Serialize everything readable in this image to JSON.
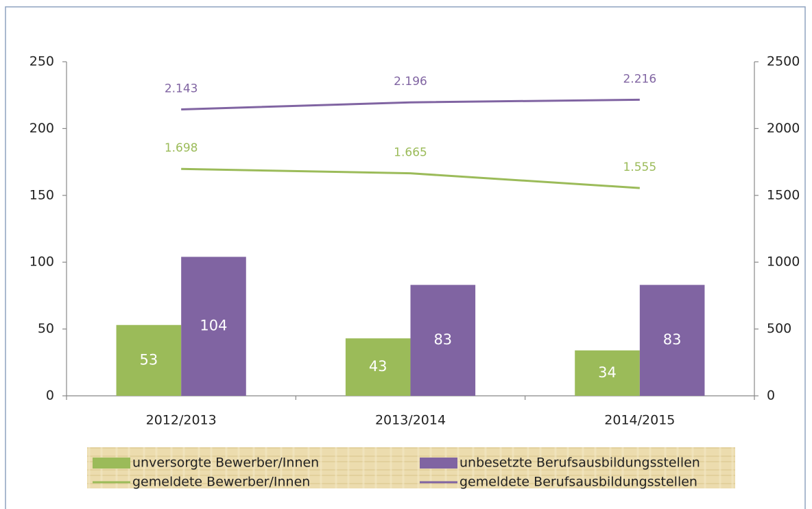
{
  "chart_data": {
    "type": "bar",
    "categories": [
      "2012/2013",
      "2013/2014",
      "2014/2015"
    ],
    "series": [
      {
        "name": "unversorgte Bewerber/Innen",
        "color": "#9bbb59",
        "values": [
          53,
          43,
          34
        ]
      },
      {
        "name": "unbesetzte Berufsausbildungsstellen",
        "color": "#8064a2",
        "values": [
          104,
          83,
          83
        ]
      },
      {
        "name": "gemeldete Bewerber/Innen",
        "color": "#9bbb59",
        "type": "line",
        "axis": "y2",
        "values": [
          1698,
          1665,
          1555
        ],
        "value_labels": [
          "1.698",
          "1.665",
          "1.555"
        ]
      },
      {
        "name": "gemeldete Berufsausbildungsstellen",
        "color": "#8064a2",
        "type": "line",
        "axis": "y2",
        "values": [
          2143,
          2196,
          2216
        ],
        "value_labels": [
          "2.143",
          "2.196",
          "2.216"
        ]
      }
    ],
    "ylim": [
      0,
      250
    ],
    "yticks": [
      0,
      50,
      100,
      150,
      200,
      250
    ],
    "y2lim": [
      0,
      2500
    ],
    "y2ticks": [
      0,
      500,
      1000,
      1500,
      2000,
      2500
    ],
    "legend": "bottom"
  }
}
